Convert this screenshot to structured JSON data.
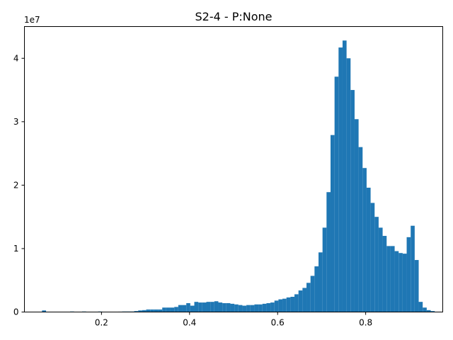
{
  "chart_data": {
    "type": "bar",
    "title": "S2-4 - P:None",
    "xlabel": "",
    "ylabel": "",
    "xlim": [
      0.025,
      0.975
    ],
    "ylim": [
      0,
      45000000
    ],
    "y_offset_label": "1e7",
    "x_ticks": [
      0.2,
      0.4,
      0.6,
      0.8
    ],
    "x_tick_labels": [
      "0.2",
      "0.4",
      "0.6",
      "0.8"
    ],
    "y_ticks": [
      0,
      10000000,
      20000000,
      30000000,
      40000000
    ],
    "y_tick_labels": [
      "0",
      "1",
      "2",
      "3",
      "4"
    ],
    "grid": false,
    "bar_color": "#1f77b4",
    "bins": {
      "start": 0.065,
      "width": 0.0091,
      "counts": [
        250000,
        50000,
        0,
        0,
        50000,
        0,
        0,
        80000,
        0,
        0,
        80000,
        0,
        50000,
        50000,
        80000,
        0,
        50000,
        50000,
        50000,
        60000,
        80000,
        80000,
        80000,
        150000,
        250000,
        300000,
        400000,
        400000,
        400000,
        400000,
        700000,
        700000,
        700000,
        800000,
        1100000,
        1100000,
        1400000,
        1000000,
        1600000,
        1500000,
        1500000,
        1600000,
        1600000,
        1700000,
        1500000,
        1400000,
        1400000,
        1300000,
        1200000,
        1100000,
        1000000,
        1100000,
        1100000,
        1200000,
        1200000,
        1300000,
        1400000,
        1500000,
        1800000,
        2000000,
        2100000,
        2300000,
        2400000,
        2800000,
        3400000,
        3800000,
        4600000,
        5700000,
        7200000,
        9400000,
        13300000,
        18900000,
        27900000,
        37100000,
        41700000,
        42800000,
        40000000,
        35000000,
        30400000,
        26000000,
        22700000,
        19600000,
        17200000,
        15000000,
        13300000,
        12000000,
        10400000,
        10400000,
        9600000,
        9300000,
        9200000,
        11800000,
        13600000,
        8200000,
        1600000,
        700000,
        300000,
        150000,
        50000
      ]
    }
  }
}
